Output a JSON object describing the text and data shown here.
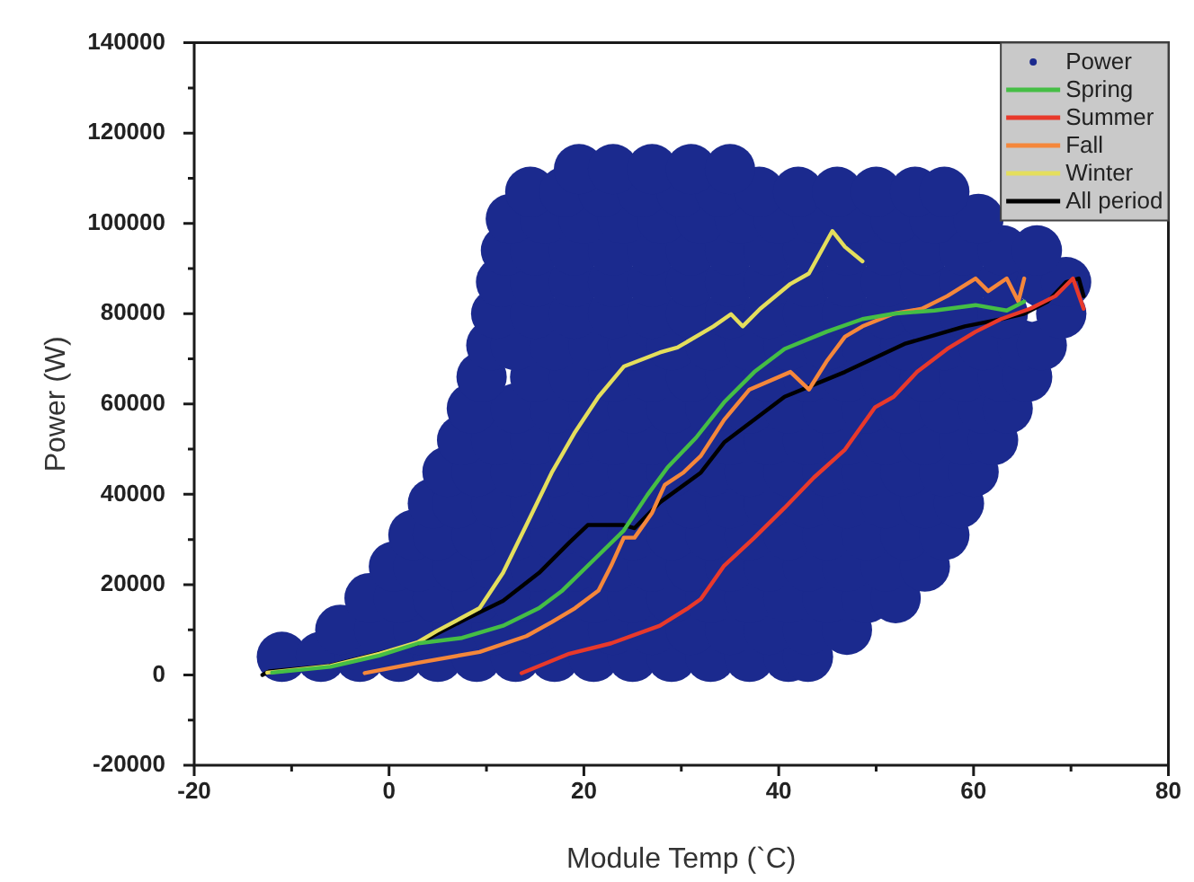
{
  "chart_data": {
    "type": "line",
    "xlabel": "Module Temp (`C)",
    "ylabel": "Power (W)",
    "xlim": [
      -20,
      80
    ],
    "xticks": [
      -20,
      {
        "value": -10,
        "label": null
      },
      0,
      {
        "value": 10,
        "label": null
      },
      20,
      {
        "value": 30,
        "label": null
      },
      40,
      {
        "value": 50,
        "label": null
      },
      60,
      {
        "value": 70,
        "label": null
      },
      80
    ],
    "ylim": [
      -20000,
      140000
    ],
    "yticks": [
      -20000,
      {
        "value": -10000,
        "label": null
      },
      0,
      {
        "value": 10000,
        "label": null
      },
      20000,
      {
        "value": 30000,
        "label": null
      },
      40000,
      {
        "value": 50000,
        "label": null
      },
      60000,
      {
        "value": 70000,
        "label": null
      },
      80000,
      {
        "value": 90000,
        "label": null
      },
      100000,
      {
        "value": 110000,
        "label": null
      },
      120000,
      {
        "value": 130000,
        "label": null
      },
      140000
    ],
    "legend": "top right",
    "marker": "none",
    "series": [
      {
        "name": "Power",
        "type": "scatter",
        "marker": "circle",
        "color": "#1b2a8e",
        "x": [
          -11,
          -7,
          -3,
          1,
          5,
          9,
          13,
          17,
          21,
          25,
          29,
          33,
          37,
          41,
          43,
          -5,
          -1,
          3,
          7,
          11,
          15,
          19,
          23,
          27,
          31,
          35,
          39,
          43,
          47,
          -2,
          1,
          5,
          9,
          13,
          17,
          21,
          25,
          29,
          33,
          37,
          41,
          45,
          49,
          52,
          0.5,
          3,
          7,
          11,
          15,
          19,
          23,
          27,
          31,
          35,
          39,
          43,
          47,
          51,
          55,
          2.5,
          5,
          9,
          13,
          17,
          21,
          25,
          29,
          33,
          37,
          41,
          45,
          49,
          53,
          57,
          4.5,
          7,
          11,
          15,
          19,
          23,
          27,
          31,
          35,
          39,
          43,
          47,
          51,
          55,
          58.5,
          6,
          9,
          13,
          17,
          21,
          25,
          29,
          33,
          37,
          41,
          45,
          49,
          53,
          57,
          60,
          7.5,
          11,
          15,
          19,
          23,
          27,
          31,
          35,
          39,
          43,
          47,
          51,
          55,
          59,
          62,
          8.5,
          13,
          17,
          21,
          25,
          29,
          33,
          37,
          41,
          45,
          49,
          53,
          57,
          61,
          63.5,
          9.5,
          15,
          19,
          23,
          27,
          31,
          35,
          39,
          43,
          47,
          51,
          55,
          59,
          63,
          65.5,
          10.5,
          13,
          17,
          21,
          25,
          29,
          33,
          37,
          41,
          45,
          49,
          53,
          57,
          61,
          65,
          67,
          11,
          15,
          19,
          23,
          27,
          31,
          35,
          39,
          43,
          47,
          51,
          55,
          59,
          63,
          69,
          11.5,
          15,
          19,
          23,
          27,
          31,
          35,
          39,
          43,
          47,
          51,
          55,
          59,
          63,
          67,
          69.5,
          12,
          15,
          19,
          23,
          27,
          31,
          35,
          39,
          43,
          47,
          51,
          55,
          59,
          63,
          66.5,
          12.5,
          16,
          20,
          24,
          28,
          32,
          36,
          40,
          44,
          48,
          52,
          56,
          60.5,
          14.5,
          18,
          22,
          26,
          30,
          34,
          38,
          42,
          46,
          50,
          54,
          57,
          19.5,
          23,
          27,
          31,
          35
        ],
        "values": [
          4000,
          4000,
          4000,
          4000,
          4000,
          4000,
          4000,
          4000,
          4000,
          4000,
          4000,
          4000,
          4000,
          4000,
          4000,
          10000,
          10000,
          10000,
          10000,
          10000,
          10000,
          10000,
          10000,
          10000,
          10000,
          10000,
          10000,
          10000,
          10000,
          17000,
          17000,
          17000,
          17000,
          17000,
          17000,
          17000,
          17000,
          17000,
          17000,
          17000,
          17000,
          17000,
          17000,
          17000,
          24000,
          24000,
          24000,
          24000,
          24000,
          24000,
          24000,
          24000,
          24000,
          24000,
          24000,
          24000,
          24000,
          24000,
          24000,
          31000,
          31000,
          31000,
          31000,
          31000,
          31000,
          31000,
          31000,
          31000,
          31000,
          31000,
          31000,
          31000,
          31000,
          31000,
          38000,
          38000,
          38000,
          38000,
          38000,
          38000,
          38000,
          38000,
          38000,
          38000,
          38000,
          38000,
          38000,
          38000,
          38000,
          45000,
          45000,
          45000,
          45000,
          45000,
          45000,
          45000,
          45000,
          45000,
          45000,
          45000,
          45000,
          45000,
          45000,
          45000,
          52000,
          52000,
          52000,
          52000,
          52000,
          52000,
          52000,
          52000,
          52000,
          52000,
          52000,
          52000,
          52000,
          52000,
          52000,
          59000,
          59000,
          59000,
          59000,
          59000,
          59000,
          59000,
          59000,
          59000,
          59000,
          59000,
          59000,
          59000,
          59000,
          59000,
          66000,
          66000,
          66000,
          66000,
          66000,
          66000,
          66000,
          66000,
          66000,
          66000,
          66000,
          66000,
          66000,
          66000,
          66000,
          73000,
          73000,
          73000,
          73000,
          73000,
          73000,
          73000,
          73000,
          73000,
          73000,
          73000,
          73000,
          73000,
          73000,
          73000,
          73000,
          80000,
          80000,
          80000,
          80000,
          80000,
          80000,
          80000,
          80000,
          80000,
          80000,
          80000,
          80000,
          80000,
          80000,
          80000,
          87000,
          87000,
          87000,
          87000,
          87000,
          87000,
          87000,
          87000,
          87000,
          87000,
          87000,
          87000,
          87000,
          87000,
          87000,
          87000,
          94000,
          94000,
          94000,
          94000,
          94000,
          94000,
          94000,
          94000,
          94000,
          94000,
          94000,
          94000,
          94000,
          94000,
          94000,
          101000,
          101000,
          101000,
          101000,
          101000,
          101000,
          101000,
          101000,
          101000,
          101000,
          101000,
          101000,
          101000,
          107000,
          107000,
          107000,
          107000,
          107000,
          107000,
          107000,
          107000,
          107000,
          107000,
          107000,
          107000,
          112000,
          112000,
          112000,
          112000,
          112000
        ]
      },
      {
        "name": "Spring",
        "color": "#45be45",
        "x": [
          -12,
          -6,
          -1,
          3,
          7.5,
          11.7,
          15.4,
          17.8,
          21.5,
          24.1,
          26.5,
          28.6,
          31.5,
          34.4,
          37.5,
          40.6,
          44.9,
          48.6,
          51.8,
          56,
          60.2,
          63.4,
          65.2
        ],
        "values": [
          500,
          1800,
          4300,
          7000,
          8200,
          10900,
          14800,
          18700,
          26500,
          32000,
          39800,
          46000,
          52500,
          60400,
          67100,
          72200,
          76000,
          78800,
          80000,
          80700,
          81900,
          80700,
          82700
        ]
      },
      {
        "name": "Summer",
        "color": "#e8392b",
        "x": [
          13.6,
          18.5,
          22.8,
          27.8,
          30.7,
          32,
          34.4,
          37.5,
          40.6,
          43.6,
          46.8,
          49.9,
          51.8,
          54.2,
          57.3,
          60.2,
          62.8,
          65.8,
          68.4,
          70.2,
          71.3
        ],
        "values": [
          400,
          4700,
          7000,
          10900,
          14800,
          16800,
          24200,
          30400,
          37000,
          43700,
          49900,
          59300,
          61600,
          67100,
          72200,
          76000,
          78800,
          81100,
          83900,
          87800,
          81100
        ]
      },
      {
        "name": "Fall",
        "color": "#f5873b",
        "x": [
          -2.5,
          3,
          9.3,
          14.1,
          16.7,
          19.1,
          21.5,
          22.8,
          24.1,
          25.2,
          27,
          28.3,
          30.2,
          32,
          34.4,
          37,
          41.2,
          43.1,
          44.9,
          46.8,
          48.6,
          51.8,
          54.7,
          57.3,
          60.2,
          61.5,
          63.4,
          64.6,
          65.2
        ],
        "values": [
          400,
          2700,
          5100,
          8600,
          11700,
          14800,
          18700,
          24200,
          30400,
          30400,
          35900,
          42100,
          44800,
          48500,
          56500,
          63200,
          67100,
          63200,
          69400,
          74900,
          77200,
          80000,
          81100,
          83900,
          87800,
          85000,
          87800,
          82700,
          87800
        ]
      },
      {
        "name": "Winter",
        "color": "#e4de5c",
        "x": [
          -12.5,
          -6,
          -1,
          3,
          4.9,
          9.3,
          11.7,
          14.1,
          16.7,
          19.1,
          21.5,
          24.1,
          27.8,
          29.6,
          33.3,
          35.1,
          36.3,
          38.1,
          41.2,
          43.1,
          45.5,
          46.8,
          48.6
        ],
        "values": [
          500,
          2000,
          4700,
          7300,
          9700,
          14800,
          22600,
          33200,
          44800,
          53800,
          61600,
          68300,
          71400,
          72500,
          77200,
          79900,
          77200,
          81100,
          86600,
          88900,
          98300,
          94800,
          91600
        ]
      },
      {
        "name": "All period",
        "color": "#000000",
        "x": [
          -13,
          -12.3,
          -6.2,
          -1.2,
          3,
          8,
          11.7,
          15.4,
          18.5,
          20.4,
          24.1,
          25.2,
          27.8,
          32,
          34.4,
          40.6,
          46.8,
          52.9,
          59.1,
          62.8,
          65.2,
          67.6,
          69.5,
          70.8,
          71.3
        ],
        "values": [
          0,
          800,
          2000,
          4700,
          7000,
          12500,
          16400,
          22600,
          29300,
          33200,
          33200,
          32500,
          38200,
          44800,
          51500,
          61600,
          67100,
          73300,
          77200,
          78800,
          80000,
          82700,
          87000,
          87800,
          83900
        ]
      }
    ]
  }
}
